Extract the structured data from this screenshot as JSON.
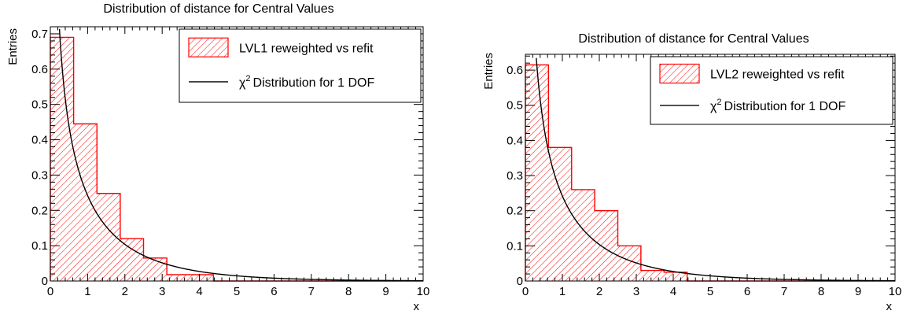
{
  "chart_data": [
    {
      "type": "bar",
      "title": "Distribution of distance for Central Values",
      "xlabel": "x",
      "ylabel": "Entries",
      "xlim": [
        0,
        10
      ],
      "ylim": [
        0,
        0.72
      ],
      "xticks": [
        "0",
        "1",
        "2",
        "3",
        "4",
        "5",
        "6",
        "7",
        "8",
        "9",
        "10"
      ],
      "yticks": [
        "0",
        "0.1",
        "0.2",
        "0.3",
        "0.4",
        "0.5",
        "0.6",
        "0.7"
      ],
      "bin_edges": [
        0,
        0.625,
        1.25,
        1.875,
        2.5,
        3.125,
        3.75,
        4.375,
        5.0,
        5.625,
        6.25,
        6.875,
        7.5,
        8.125,
        8.75,
        9.375,
        10.0
      ],
      "values": [
        0.69,
        0.445,
        0.248,
        0.12,
        0.065,
        0.018,
        0.018,
        0,
        0,
        0,
        0,
        0,
        0,
        0,
        0,
        0
      ],
      "series": [
        {
          "name": "LVL1 reweighted vs refit",
          "kind": "histogram",
          "color": "#ff0000",
          "fill": "hatched"
        },
        {
          "name": "Distribution for 1 DOF",
          "name_prefix": "χ",
          "name_sup": "2",
          "kind": "curve",
          "function": "chi2_1dof",
          "color": "#000000"
        }
      ],
      "legend_position": "top-right",
      "grid": false
    },
    {
      "type": "bar",
      "title": "Distribution of distance for Central Values",
      "xlabel": "x",
      "ylabel": "Entries",
      "xlim": [
        0,
        10
      ],
      "ylim": [
        0,
        0.645
      ],
      "xticks": [
        "0",
        "1",
        "2",
        "3",
        "4",
        "5",
        "6",
        "7",
        "8",
        "9",
        "10"
      ],
      "yticks": [
        "0",
        "0.1",
        "0.2",
        "0.3",
        "0.4",
        "0.5",
        "0.6"
      ],
      "bin_edges": [
        0,
        0.625,
        1.25,
        1.875,
        2.5,
        3.125,
        3.75,
        4.375,
        5.0,
        5.625,
        6.25,
        6.875,
        7.5,
        8.125,
        8.75,
        9.375,
        10.0
      ],
      "values": [
        0.615,
        0.38,
        0.26,
        0.2,
        0.1,
        0.03,
        0.025,
        0,
        0,
        0,
        0,
        0,
        0,
        0,
        0,
        0
      ],
      "series": [
        {
          "name": "LVL2 reweighted vs refit",
          "kind": "histogram",
          "color": "#ff0000",
          "fill": "hatched"
        },
        {
          "name": "Distribution for 1 DOF",
          "name_prefix": "χ",
          "name_sup": "2",
          "kind": "curve",
          "function": "chi2_1dof",
          "color": "#000000"
        }
      ],
      "legend_position": "top-right",
      "grid": false
    }
  ]
}
